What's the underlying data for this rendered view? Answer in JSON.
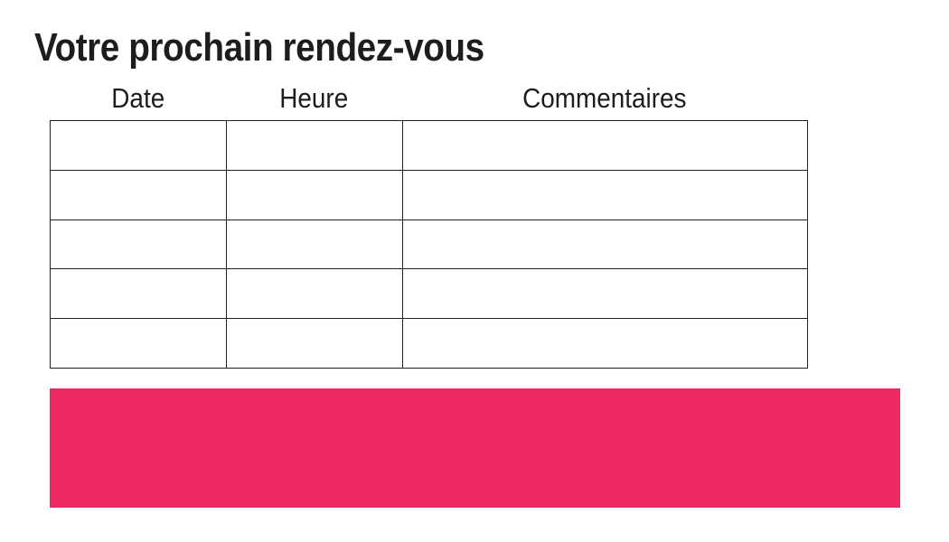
{
  "title": {
    "text": "Votre prochain rendez-vous"
  },
  "table": {
    "columns": [
      {
        "label": "Date"
      },
      {
        "label": "Heure"
      },
      {
        "label": "Commentaires"
      }
    ],
    "rows": [
      [
        "",
        "",
        ""
      ],
      [
        "",
        "",
        ""
      ],
      [
        "",
        "",
        ""
      ],
      [
        "",
        "",
        ""
      ],
      [
        "",
        "",
        ""
      ]
    ]
  },
  "banner": {
    "background": "#EE2A63"
  },
  "colors": {
    "text": "#1D1D1B",
    "table_border": "#1F1F1F",
    "accent_pink": "#EE2A63"
  }
}
